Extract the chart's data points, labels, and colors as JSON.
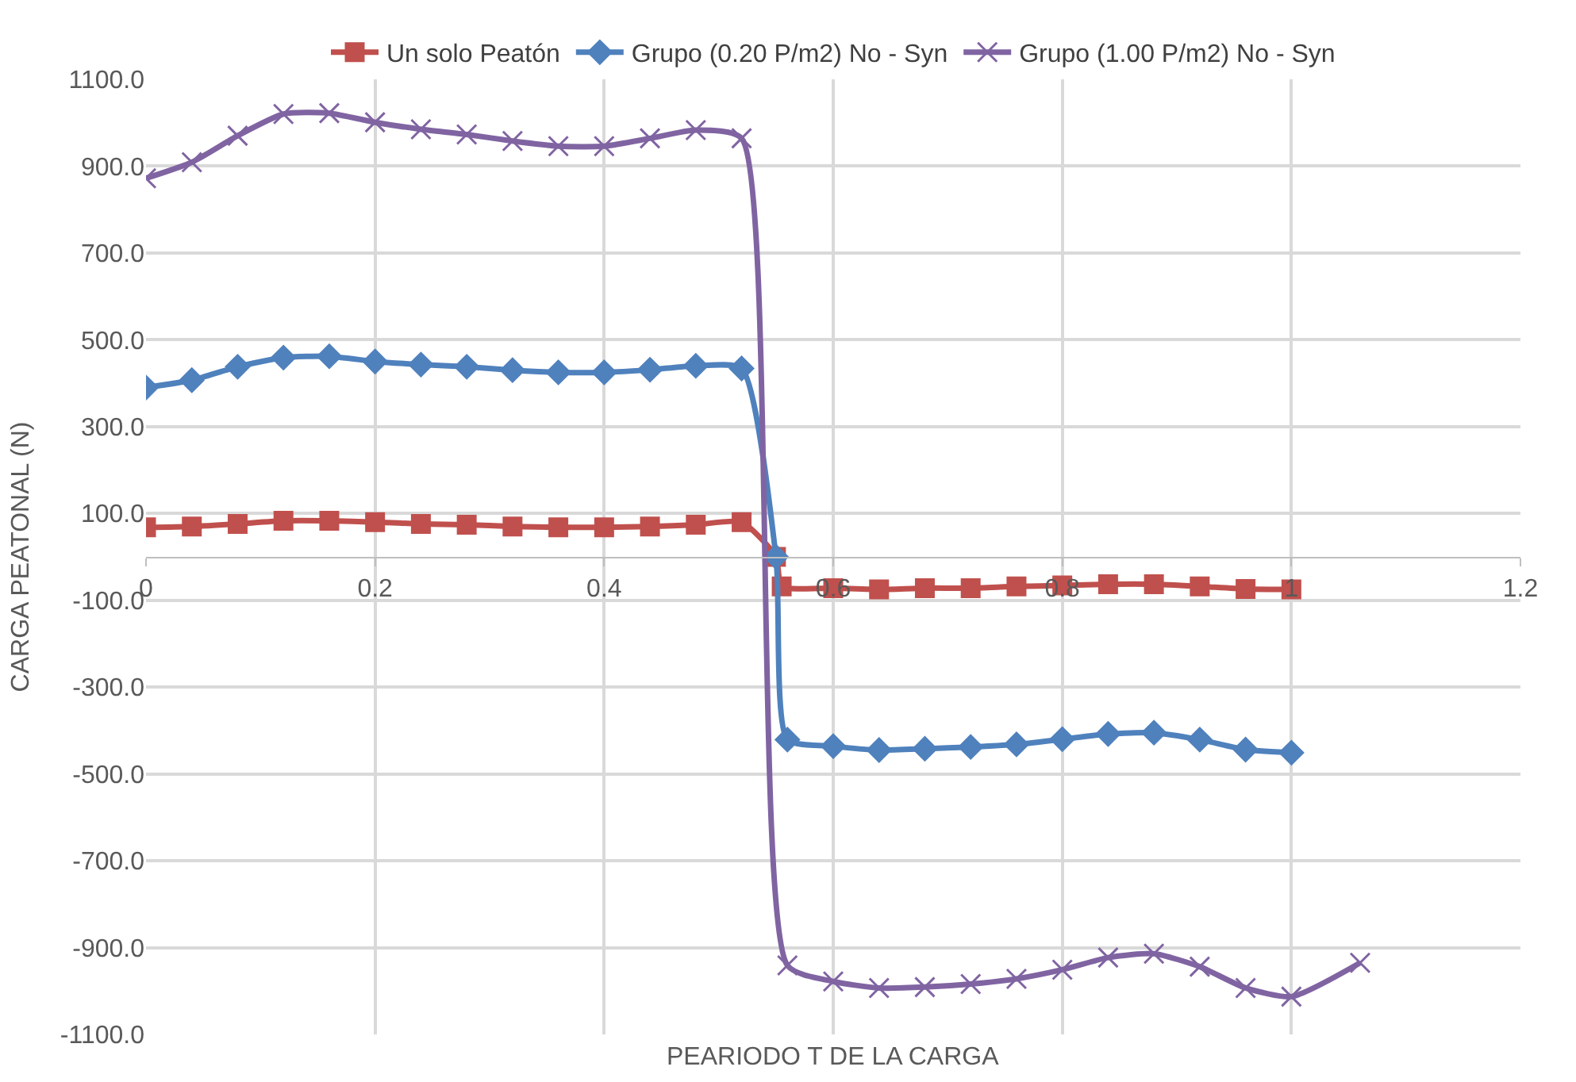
{
  "chart_data": {
    "type": "line",
    "xlabel": "PEARIODO T DE LA CARGA",
    "ylabel": "CARGA PEATONAL (N)",
    "xlim": [
      0,
      1.2
    ],
    "xticks": [
      0,
      0.2,
      0.4,
      0.6,
      0.8,
      1,
      1.2
    ],
    "ylim": [
      -1100,
      1100
    ],
    "yticks": [
      {
        "value": -1100,
        "label": "-1100.0"
      },
      {
        "value": -900,
        "label": "-900.0"
      },
      {
        "value": -700,
        "label": "-700.0"
      },
      {
        "value": -500,
        "label": "-500.0"
      },
      {
        "value": -300,
        "label": "-300.0"
      },
      {
        "value": -100,
        "label": "-100.0"
      },
      {
        "value": 100,
        "label": "100.0"
      },
      {
        "value": 300,
        "label": "300.0"
      },
      {
        "value": 500,
        "label": "500.0"
      },
      {
        "value": 700,
        "label": "700.0"
      },
      {
        "value": 900,
        "label": "900.0"
      },
      {
        "value": 1100,
        "label": "1100.0"
      }
    ],
    "grid": true,
    "legend": "top",
    "line_style": "solid",
    "series": [
      {
        "name": "Un solo Peatón",
        "color": "#c0504d",
        "marker": "square",
        "x": [
          0,
          0.04,
          0.08,
          0.12,
          0.16,
          0.2,
          0.24,
          0.28,
          0.32,
          0.36,
          0.4,
          0.44,
          0.48,
          0.52,
          0.55,
          0.555,
          0.6,
          0.64,
          0.68,
          0.72,
          0.76,
          0.8,
          0.84,
          0.88,
          0.92,
          0.96,
          1.0
        ],
        "values": [
          68,
          70,
          76,
          83,
          83,
          80,
          76,
          74,
          70,
          68,
          68,
          70,
          74,
          80,
          0,
          -68,
          -72,
          -75,
          -72,
          -72,
          -68,
          -66,
          -63,
          -63,
          -68,
          -74,
          -75
        ]
      },
      {
        "name": "Grupo (0.20 P/m2) No - Syn",
        "color": "#4f81bd",
        "marker": "diamond",
        "x": [
          0,
          0.04,
          0.08,
          0.12,
          0.16,
          0.2,
          0.24,
          0.28,
          0.32,
          0.36,
          0.4,
          0.44,
          0.48,
          0.52,
          0.55,
          0.56,
          0.6,
          0.64,
          0.68,
          0.72,
          0.76,
          0.8,
          0.84,
          0.88,
          0.92,
          0.96,
          1.0
        ],
        "values": [
          390,
          407,
          438,
          459,
          462,
          450,
          443,
          438,
          430,
          425,
          425,
          431,
          440,
          434,
          0,
          -421,
          -436,
          -445,
          -442,
          -438,
          -432,
          -420,
          -408,
          -405,
          -421,
          -444,
          -451
        ]
      },
      {
        "name": "Grupo (1.00 P/m2) No - Syn",
        "color": "#8064a2",
        "marker": "cross",
        "x": [
          0,
          0.04,
          0.08,
          0.12,
          0.16,
          0.2,
          0.24,
          0.28,
          0.32,
          0.36,
          0.4,
          0.44,
          0.48,
          0.52,
          0.56,
          0.6,
          0.64,
          0.68,
          0.72,
          0.76,
          0.8,
          0.84,
          0.88,
          0.92,
          0.96,
          1.0,
          1.06
        ],
        "values": [
          872,
          909,
          970,
          1020,
          1022,
          1001,
          985,
          973,
          958,
          946,
          946,
          964,
          983,
          964,
          -941,
          -978,
          -993,
          -991,
          -984,
          -972,
          -951,
          -923,
          -914,
          -944,
          -993,
          -1013,
          -935
        ]
      }
    ]
  }
}
